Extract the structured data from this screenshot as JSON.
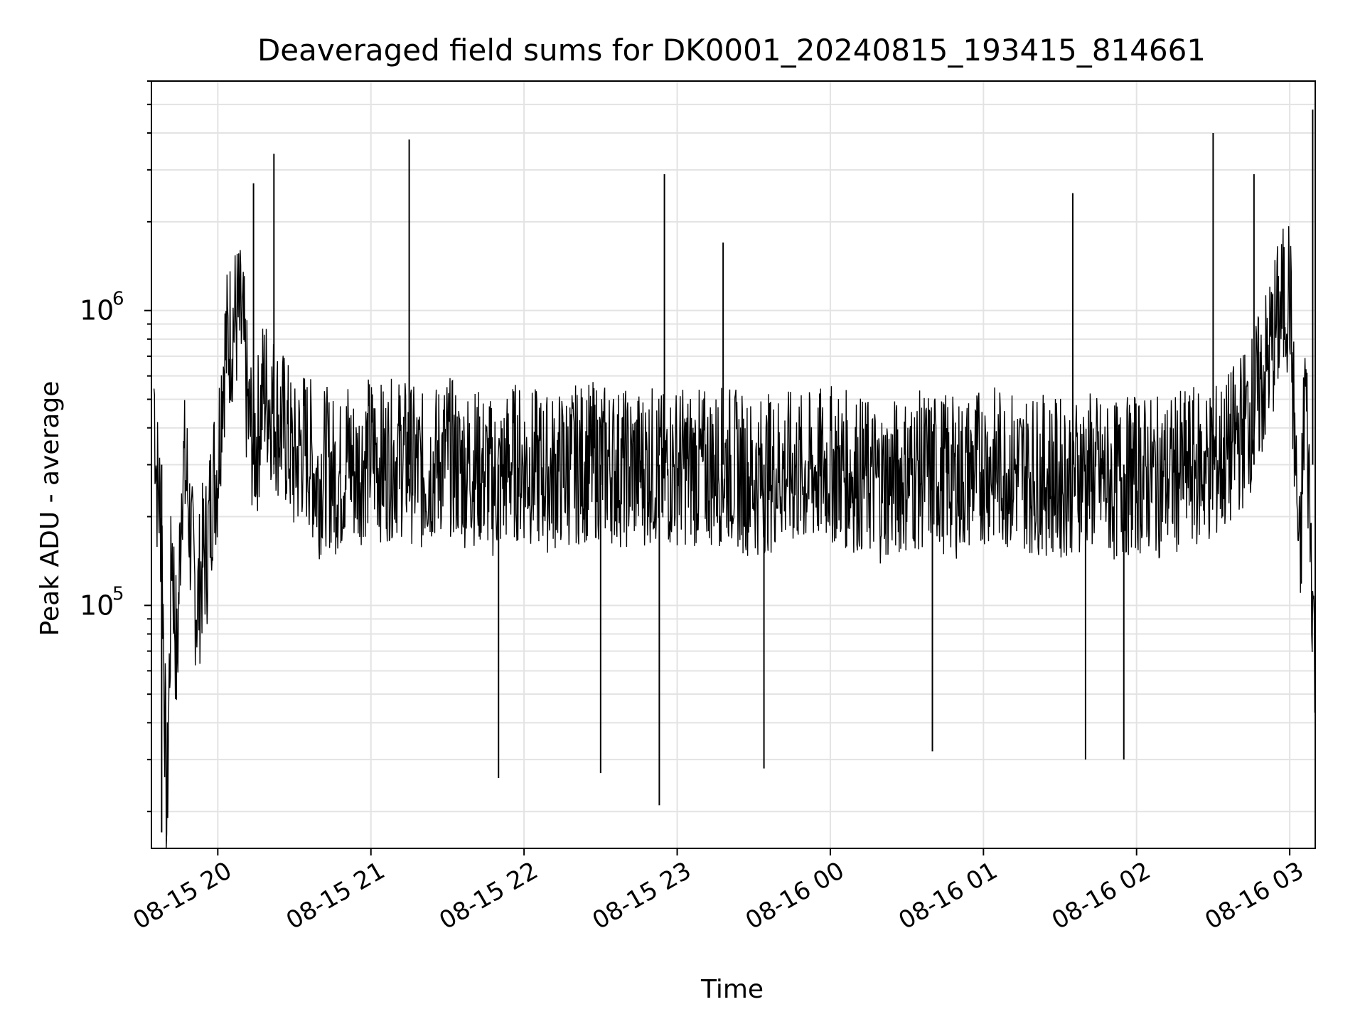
{
  "chart_data": {
    "type": "line",
    "title": "Deaveraged field sums for DK0001_20240815_193415_814661",
    "xlabel": "Time",
    "ylabel": "Peak ADU - average",
    "yscale": "log",
    "ylim": [
      15000,
      6000000
    ],
    "xlim": [
      "2024-08-15 19:34",
      "2024-08-16 03:10"
    ],
    "grid": true,
    "line_color": "#000000",
    "xticks": [
      "08-15 20",
      "08-15 21",
      "08-15 22",
      "08-15 23",
      "08-16 00",
      "08-16 01",
      "08-16 02",
      "08-16 03"
    ],
    "yticks": [
      {
        "base": "10",
        "exp": "5",
        "value": 100000
      },
      {
        "base": "10",
        "exp": "6",
        "value": 1000000
      }
    ],
    "series": [
      {
        "x": [
          "2024-08-15 19:35",
          "2024-08-15 19:36",
          "2024-08-15 19:38",
          "2024-08-15 19:40",
          "2024-08-15 19:42",
          "2024-08-15 19:44",
          "2024-08-15 19:46",
          "2024-08-15 19:48",
          "2024-08-15 19:50",
          "2024-08-15 19:52",
          "2024-08-15 19:54",
          "2024-08-15 19:56",
          "2024-08-15 19:58",
          "2024-08-15 20:00",
          "2024-08-15 20:02",
          "2024-08-15 20:04",
          "2024-08-15 20:06",
          "2024-08-15 20:08",
          "2024-08-15 20:10",
          "2024-08-15 20:12",
          "2024-08-15 20:15",
          "2024-08-15 20:18",
          "2024-08-15 20:21",
          "2024-08-15 20:24",
          "2024-08-15 20:27",
          "2024-08-15 20:30",
          "2024-08-15 20:33",
          "2024-08-15 20:36",
          "2024-08-15 20:39",
          "2024-08-15 20:42",
          "2024-08-15 20:45",
          "2024-08-15 20:48",
          "2024-08-15 20:51",
          "2024-08-15 20:54",
          "2024-08-15 20:57",
          "2024-08-15 21:00",
          "2024-08-15 21:05",
          "2024-08-15 21:10",
          "2024-08-15 21:15",
          "2024-08-15 21:20",
          "2024-08-15 21:25",
          "2024-08-15 21:30",
          "2024-08-15 21:35",
          "2024-08-15 21:40",
          "2024-08-15 21:45",
          "2024-08-15 21:50",
          "2024-08-15 21:55",
          "2024-08-15 22:00",
          "2024-08-15 22:10",
          "2024-08-15 22:20",
          "2024-08-15 22:30",
          "2024-08-15 22:40",
          "2024-08-15 22:50",
          "2024-08-15 22:55",
          "2024-08-15 23:00",
          "2024-08-15 23:10",
          "2024-08-15 23:20",
          "2024-08-15 23:30",
          "2024-08-15 23:40",
          "2024-08-15 23:50",
          "2024-08-16 00:00",
          "2024-08-16 00:10",
          "2024-08-16 00:20",
          "2024-08-16 00:30",
          "2024-08-16 00:40",
          "2024-08-16 00:50",
          "2024-08-16 01:00",
          "2024-08-16 01:10",
          "2024-08-16 01:20",
          "2024-08-16 01:30",
          "2024-08-16 01:40",
          "2024-08-16 01:50",
          "2024-08-16 02:00",
          "2024-08-16 02:10",
          "2024-08-16 02:20",
          "2024-08-16 02:30",
          "2024-08-16 02:35",
          "2024-08-16 02:40",
          "2024-08-16 02:45",
          "2024-08-16 02:50",
          "2024-08-16 02:55",
          "2024-08-16 03:00",
          "2024-08-16 03:02",
          "2024-08-16 03:04",
          "2024-08-16 03:06",
          "2024-08-16 03:08",
          "2024-08-16 03:10"
        ],
        "values": [
          550000,
          280000,
          190000,
          18000,
          170000,
          60000,
          300000,
          260000,
          140000,
          100000,
          140000,
          160000,
          260000,
          300000,
          650000,
          800000,
          900000,
          950000,
          800000,
          420000,
          350000,
          550000,
          480000,
          420000,
          380000,
          300000,
          350000,
          330000,
          260000,
          300000,
          280000,
          270000,
          330000,
          280000,
          310000,
          330000,
          300000,
          320000,
          310000,
          280000,
          300000,
          330000,
          290000,
          300000,
          280000,
          260000,
          310000,
          300000,
          280000,
          300000,
          310000,
          290000,
          300000,
          280000,
          300000,
          290000,
          300000,
          270000,
          290000,
          280000,
          300000,
          280000,
          260000,
          280000,
          290000,
          270000,
          300000,
          290000,
          280000,
          270000,
          290000,
          260000,
          280000,
          270000,
          290000,
          300000,
          320000,
          380000,
          450000,
          600000,
          900000,
          1200000,
          350000,
          120000,
          600000,
          200000,
          60000
        ],
        "spikes_up": [
          {
            "x": "2024-08-15 20:14",
            "value": 2700000
          },
          {
            "x": "2024-08-15 20:22",
            "value": 3400000
          },
          {
            "x": "2024-08-15 21:15",
            "value": 3800000
          },
          {
            "x": "2024-08-15 22:55",
            "value": 2900000
          },
          {
            "x": "2024-08-15 23:18",
            "value": 1700000
          },
          {
            "x": "2024-08-16 01:35",
            "value": 2500000
          },
          {
            "x": "2024-08-16 02:30",
            "value": 4000000
          },
          {
            "x": "2024-08-16 02:46",
            "value": 2900000
          },
          {
            "x": "2024-08-16 03:09",
            "value": 4800000
          }
        ],
        "spikes_down": [
          {
            "x": "2024-08-15 19:38",
            "value": 17000
          },
          {
            "x": "2024-08-15 21:50",
            "value": 26000
          },
          {
            "x": "2024-08-15 22:30",
            "value": 27000
          },
          {
            "x": "2024-08-15 22:53",
            "value": 21000
          },
          {
            "x": "2024-08-15 23:34",
            "value": 28000
          },
          {
            "x": "2024-08-16 00:40",
            "value": 32000
          },
          {
            "x": "2024-08-16 01:55",
            "value": 30000
          },
          {
            "x": "2024-08-16 01:40",
            "value": 30000
          }
        ]
      }
    ]
  }
}
